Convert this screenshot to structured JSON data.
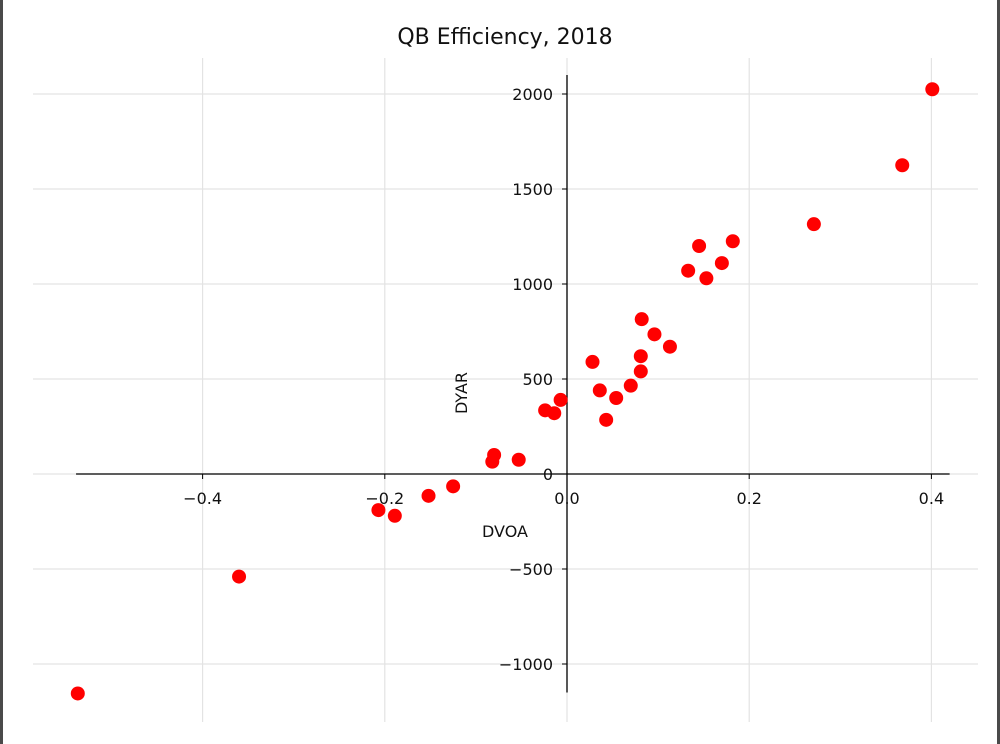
{
  "chart_data": {
    "type": "scatter",
    "title": "QB Efficiency, 2018",
    "xlabel": "DVOA",
    "ylabel": "DYAR",
    "xlim": [
      -0.54,
      0.42
    ],
    "ylim": [
      -1150,
      2100
    ],
    "xticks": [
      -0.4,
      -0.2,
      0.0,
      0.2,
      0.4
    ],
    "xtick_labels": [
      "−0.4",
      "−0.2",
      "0.0",
      "0.2",
      "0.4"
    ],
    "yticks": [
      -1000,
      -500,
      0,
      500,
      1000,
      1500,
      2000
    ],
    "ytick_labels": [
      "−1000",
      "−500",
      "0",
      "500",
      "1000",
      "1500",
      "2000"
    ],
    "grid": true,
    "spines": "centered at origin",
    "marker_color": "#ff0000",
    "points": [
      {
        "x": 0.401,
        "y": 2025
      },
      {
        "x": 0.368,
        "y": 1625
      },
      {
        "x": 0.271,
        "y": 1315
      },
      {
        "x": 0.182,
        "y": 1225
      },
      {
        "x": 0.145,
        "y": 1200
      },
      {
        "x": 0.17,
        "y": 1110
      },
      {
        "x": 0.133,
        "y": 1070
      },
      {
        "x": 0.153,
        "y": 1030
      },
      {
        "x": 0.082,
        "y": 815
      },
      {
        "x": 0.096,
        "y": 735
      },
      {
        "x": 0.113,
        "y": 670
      },
      {
        "x": 0.081,
        "y": 620
      },
      {
        "x": 0.028,
        "y": 590
      },
      {
        "x": 0.081,
        "y": 540
      },
      {
        "x": 0.07,
        "y": 465
      },
      {
        "x": 0.036,
        "y": 440
      },
      {
        "x": 0.054,
        "y": 400
      },
      {
        "x": -0.007,
        "y": 390
      },
      {
        "x": -0.024,
        "y": 335
      },
      {
        "x": -0.014,
        "y": 320
      },
      {
        "x": 0.043,
        "y": 285
      },
      {
        "x": -0.08,
        "y": 100
      },
      {
        "x": -0.053,
        "y": 75
      },
      {
        "x": -0.082,
        "y": 65
      },
      {
        "x": -0.125,
        "y": -65
      },
      {
        "x": -0.152,
        "y": -115
      },
      {
        "x": -0.207,
        "y": -190
      },
      {
        "x": -0.189,
        "y": -220
      },
      {
        "x": -0.36,
        "y": -540
      },
      {
        "x": -0.537,
        "y": -1155
      }
    ]
  }
}
